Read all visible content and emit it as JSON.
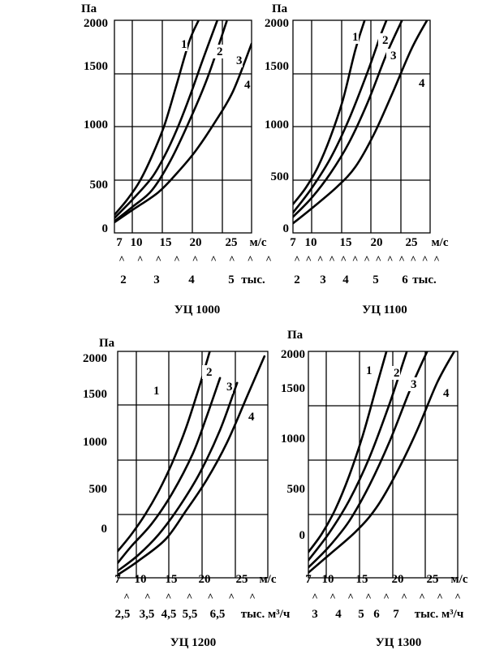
{
  "chart_data": [
    {
      "type": "line",
      "title": "УЦ 1000",
      "ylabel": "Па",
      "y_ticks": [
        "2000",
        "1500",
        "1000",
        "500",
        "0"
      ],
      "x_ticks": [
        "7",
        "10",
        "15",
        "20",
        "25"
      ],
      "x_unit": "м/с",
      "caret_count": 9,
      "flow_ticks": [
        "2",
        "3",
        "4",
        "5"
      ],
      "flow_unit": "тыс.",
      "xlim": [
        7,
        29
      ],
      "ylim": [
        0,
        2000
      ],
      "series": [
        {
          "name": "1",
          "x": [
            7,
            9,
            11,
            13,
            15,
            17,
            19,
            20.5
          ],
          "y": [
            170,
            310,
            480,
            720,
            1010,
            1400,
            1800,
            2000
          ]
        },
        {
          "name": "2",
          "x": [
            7,
            10,
            13,
            15,
            17,
            19,
            21,
            23.5
          ],
          "y": [
            140,
            320,
            520,
            720,
            970,
            1270,
            1600,
            2000
          ]
        },
        {
          "name": "3",
          "x": [
            7,
            10,
            13,
            16,
            19,
            22,
            25
          ],
          "y": [
            110,
            250,
            400,
            680,
            1050,
            1470,
            1990
          ]
        },
        {
          "name": "4",
          "x": [
            7,
            10,
            14,
            17,
            20,
            23,
            26,
            29
          ],
          "y": [
            100,
            220,
            380,
            560,
            770,
            1030,
            1330,
            1780
          ]
        }
      ]
    },
    {
      "type": "line",
      "title": "УЦ 1100",
      "ylabel": "Па",
      "y_ticks": [
        "2000",
        "1500",
        "1000",
        "500",
        "0"
      ],
      "x_ticks": [
        "7",
        "10",
        "15",
        "20",
        "25"
      ],
      "x_unit": "м/с",
      "caret_count": 13,
      "flow_ticks": [
        "2",
        "3",
        "4",
        "5",
        "6"
      ],
      "flow_unit": "тыс.",
      "xlim": [
        7,
        29
      ],
      "ylim": [
        0,
        2000
      ],
      "series": [
        {
          "name": "1",
          "x": [
            7,
            9,
            11,
            13,
            15,
            17,
            18.5
          ],
          "y": [
            270,
            420,
            620,
            900,
            1250,
            1720,
            2000
          ]
        },
        {
          "name": "2",
          "x": [
            7,
            10,
            13,
            16,
            19,
            21,
            22
          ],
          "y": [
            190,
            420,
            700,
            1070,
            1520,
            1850,
            2000
          ]
        },
        {
          "name": "3",
          "x": [
            7,
            10,
            13,
            16,
            19,
            22,
            24.5
          ],
          "y": [
            150,
            330,
            560,
            850,
            1230,
            1680,
            2000
          ]
        },
        {
          "name": "4",
          "x": [
            7,
            10,
            14,
            17,
            20,
            23,
            26,
            28.5
          ],
          "y": [
            90,
            230,
            430,
            620,
            930,
            1320,
            1730,
            2000
          ]
        }
      ]
    },
    {
      "type": "line",
      "title": "УЦ 1200",
      "ylabel": "Па",
      "y_ticks": [
        "2000",
        "1500",
        "1000",
        "500",
        "0"
      ],
      "x_ticks": [
        "7",
        "10",
        "15",
        "20",
        "25"
      ],
      "x_unit": "м/с",
      "caret_count": 7,
      "flow_ticks": [
        "2,5",
        "3,5",
        "4,5",
        "5,5",
        "6,5"
      ],
      "flow_unit": "тыс. м³/ч",
      "xlim": [
        7,
        29
      ],
      "ylim": [
        -300,
        2000
      ],
      "series": [
        {
          "name": "1",
          "x": [
            7,
            9,
            11,
            13,
            15,
            17,
            19,
            20.5
          ],
          "y": [
            -30,
            140,
            340,
            580,
            870,
            1220,
            1650,
            2000
          ]
        },
        {
          "name": "2",
          "x": [
            7,
            9,
            12,
            15,
            18,
            20,
            22
          ],
          "y": [
            -150,
            20,
            250,
            560,
            960,
            1330,
            1730
          ]
        },
        {
          "name": "3",
          "x": [
            7,
            10,
            13,
            16,
            19,
            22,
            24.5
          ],
          "y": [
            -230,
            -70,
            140,
            420,
            760,
            1200,
            1680
          ]
        },
        {
          "name": "4",
          "x": [
            7,
            10,
            14,
            17,
            20,
            23,
            26,
            28.5
          ],
          "y": [
            -270,
            -130,
            90,
            380,
            690,
            1070,
            1550,
            1950
          ]
        }
      ]
    },
    {
      "type": "line",
      "title": "УЦ 1300",
      "ylabel": "Па",
      "y_ticks": [
        "2000",
        "1500",
        "1000",
        "500",
        "0"
      ],
      "x_ticks": [
        "7",
        "10",
        "15",
        "20",
        "25"
      ],
      "x_unit": "м/с",
      "caret_count": 9,
      "flow_ticks": [
        "3",
        "4",
        "5",
        "6",
        "7"
      ],
      "flow_unit": "тыс. м³/ч",
      "xlim": [
        7,
        29
      ],
      "ylim": [
        -200,
        2000
      ],
      "series": [
        {
          "name": "1",
          "x": [
            7,
            9,
            11,
            13,
            15,
            17,
            18.5
          ],
          "y": [
            50,
            230,
            470,
            790,
            1180,
            1650,
            2000
          ]
        },
        {
          "name": "2",
          "x": [
            7,
            10,
            13,
            16,
            19,
            21,
            21.5
          ],
          "y": [
            -30,
            230,
            550,
            970,
            1500,
            1900,
            2000
          ]
        },
        {
          "name": "3",
          "x": [
            7,
            10,
            13,
            16,
            19,
            22,
            24.5
          ],
          "y": [
            -100,
            100,
            350,
            700,
            1130,
            1630,
            2000
          ]
        },
        {
          "name": "4",
          "x": [
            7,
            10,
            14,
            17,
            20,
            23,
            26,
            28.5
          ],
          "y": [
            -150,
            20,
            250,
            480,
            820,
            1230,
            1700,
            2000
          ]
        }
      ]
    }
  ]
}
